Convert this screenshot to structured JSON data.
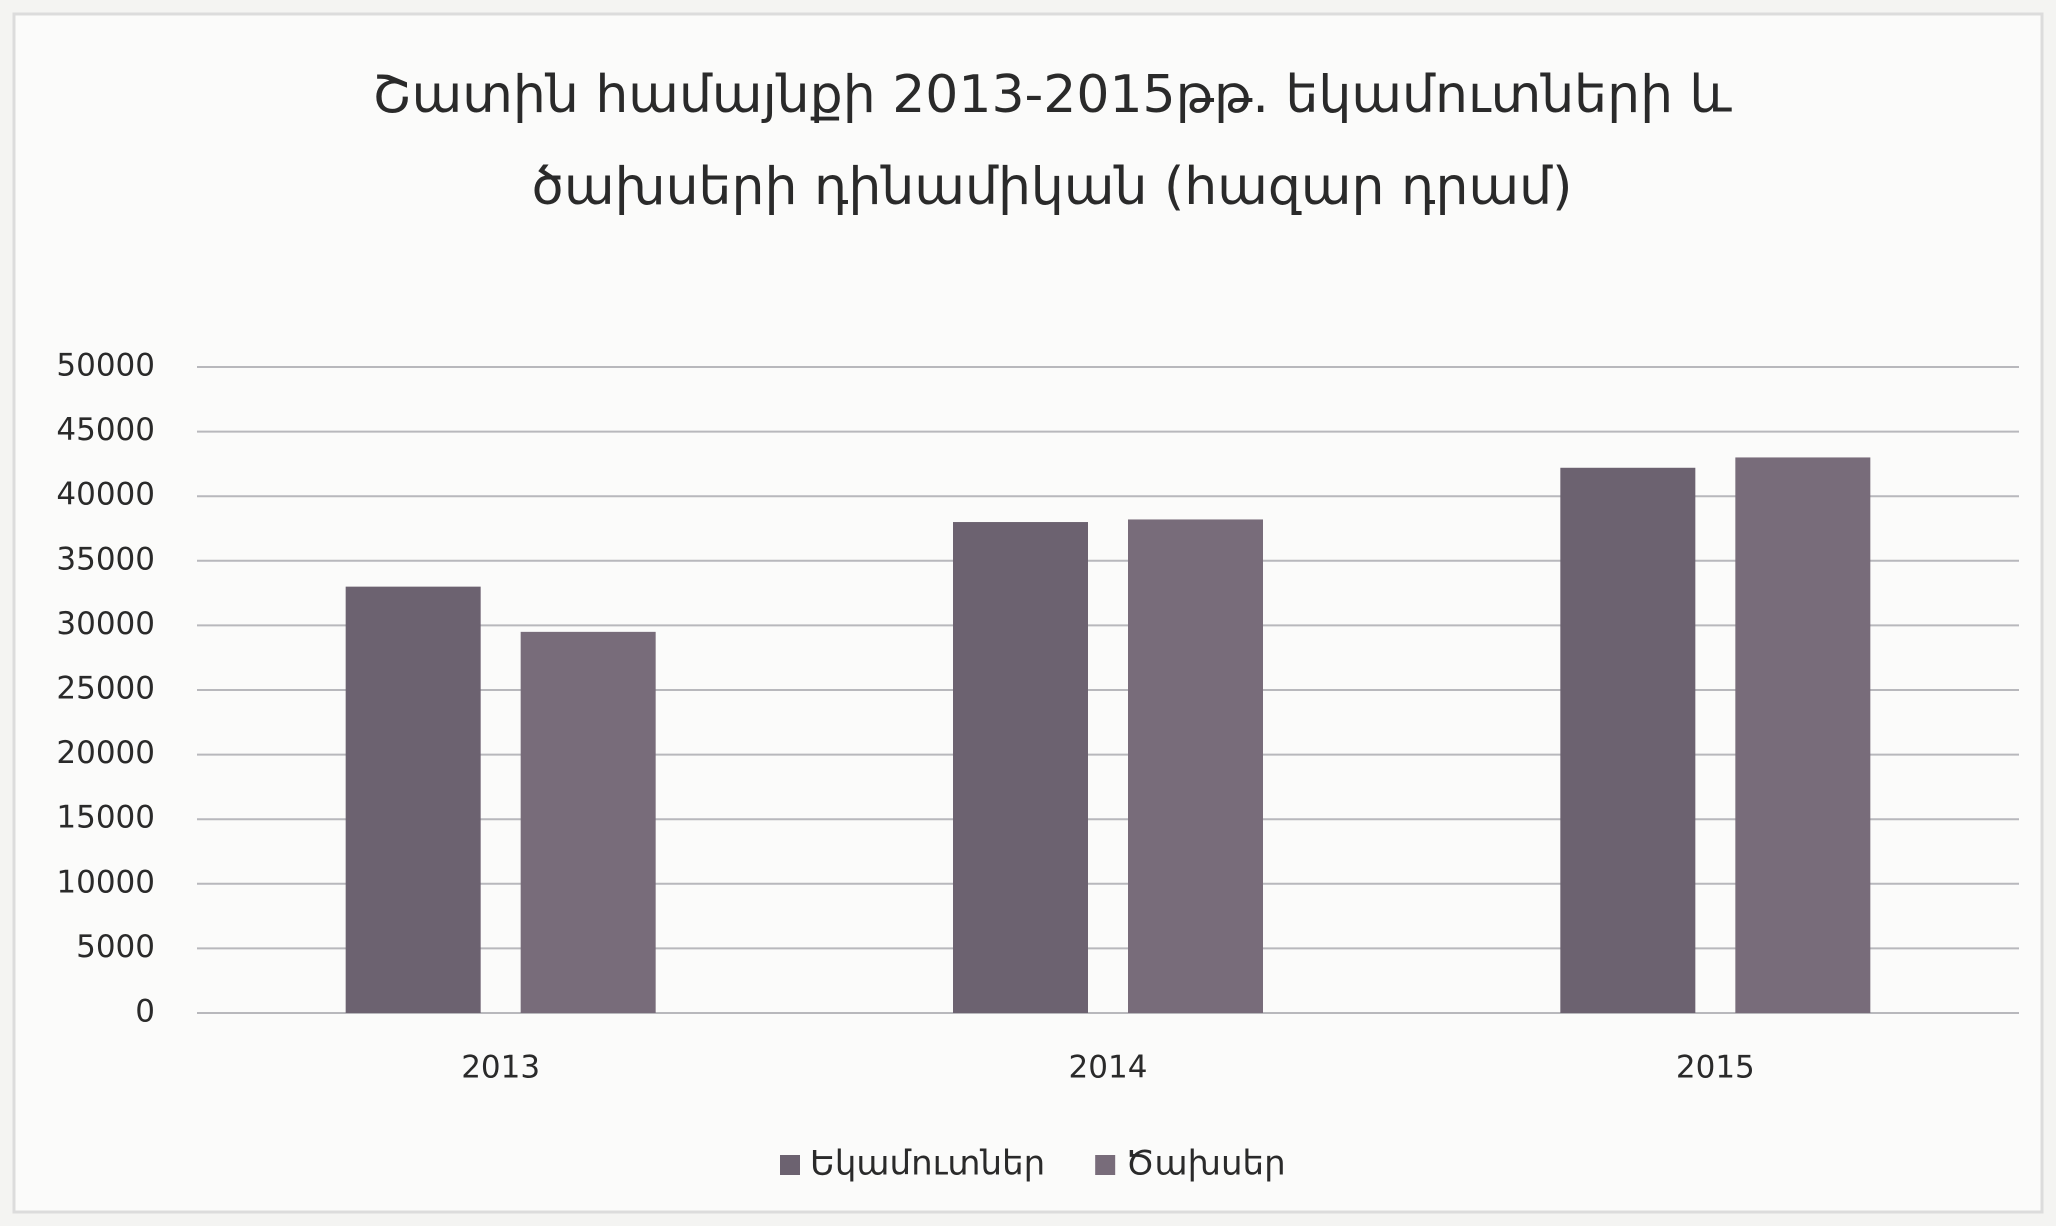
{
  "chart_data": {
    "type": "bar",
    "title": [
      "Շատին համայնքի 2013-2015թթ. եկամուտների և",
      "ծախսերի դինամիկան (հազար դրամ)"
    ],
    "categories": [
      "2013",
      "2014",
      "2015"
    ],
    "series": [
      {
        "name": "Եկամուտներ",
        "color": "#6c6270",
        "values": [
          33000,
          38000,
          42200
        ]
      },
      {
        "name": "Ծախսեր",
        "color": "#786c7a",
        "values": [
          29500,
          38200,
          43000
        ]
      }
    ],
    "ylim": [
      0,
      50000
    ],
    "yticks": [
      0,
      5000,
      10000,
      15000,
      20000,
      25000,
      30000,
      35000,
      40000,
      45000,
      50000
    ],
    "grid": true,
    "legend": "bottom"
  }
}
